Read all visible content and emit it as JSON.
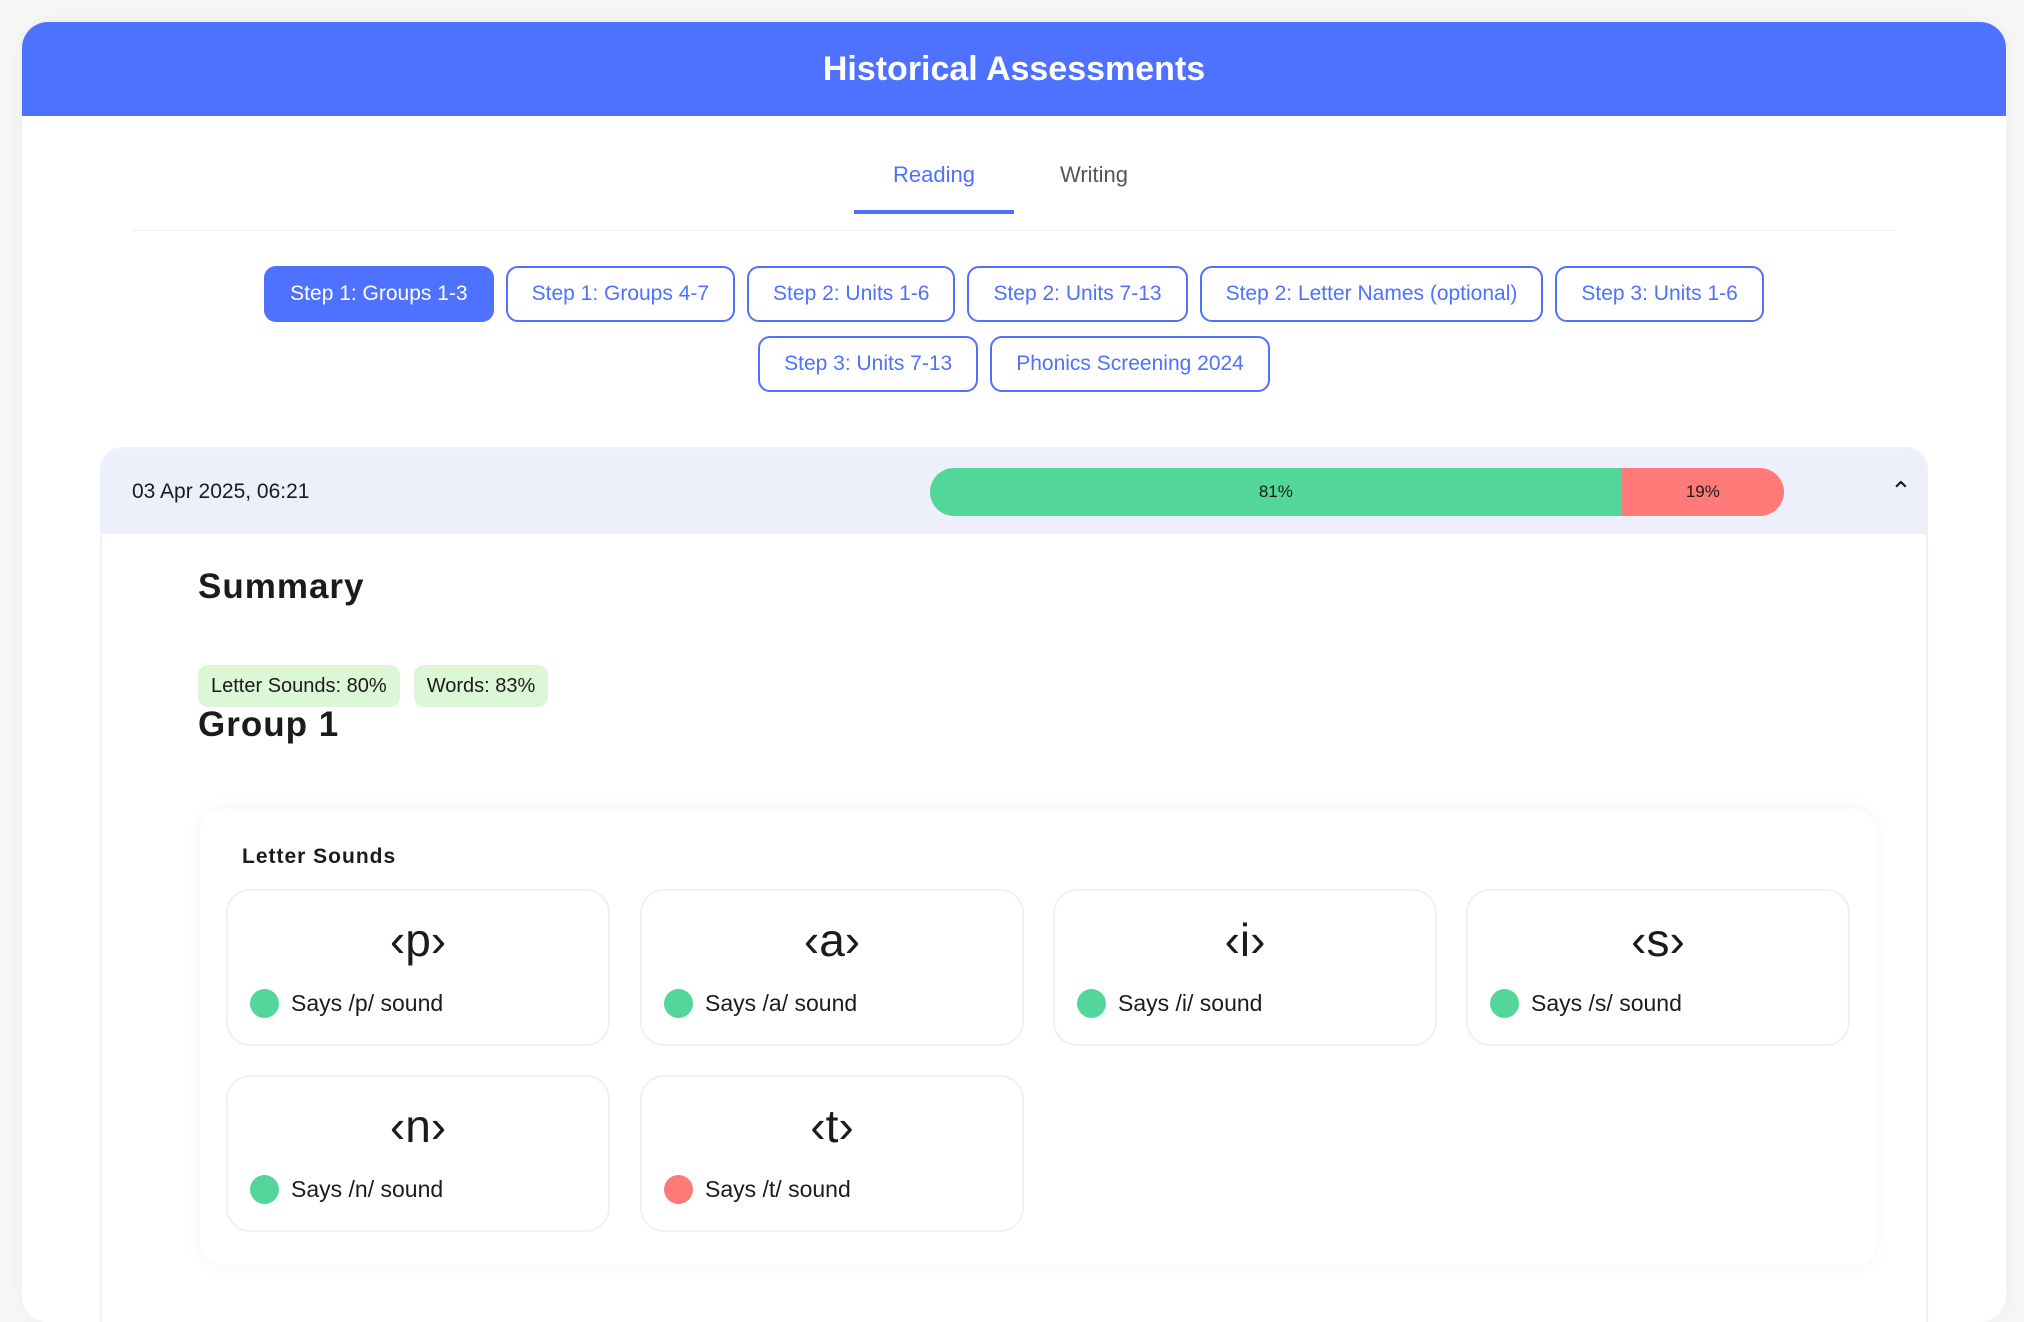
{
  "title": "Historical Assessments",
  "tabs": [
    {
      "label": "Reading",
      "active": true
    },
    {
      "label": "Writing",
      "active": false
    }
  ],
  "steps": [
    "Step 1: Groups 1-3",
    "Step 1: Groups 4-7",
    "Step 2: Units 1-6",
    "Step 2: Units 7-13",
    "Step 2: Letter Names (optional)",
    "Step 3: Units 1-6",
    "Step 3: Units 7-13",
    "Phonics Screening 2024"
  ],
  "assessment": {
    "date": "03 Apr 2025, 06:21",
    "correct_percent": 81,
    "correct_label": "81%",
    "incorrect_percent": 19,
    "incorrect_label": "19%",
    "correct_color": "#52d69a",
    "incorrect_color": "#ff7a78"
  },
  "summary": {
    "heading": "Summary",
    "badges": [
      "Letter Sounds: 80%",
      "Words: 83%"
    ]
  },
  "group": {
    "heading": "Group 1",
    "section": "Letter Sounds",
    "items": [
      {
        "glyph": "‹p›",
        "label": "Says /p/ sound",
        "status": "correct"
      },
      {
        "glyph": "‹a›",
        "label": "Says /a/ sound",
        "status": "correct"
      },
      {
        "glyph": "‹i›",
        "label": "Says /i/ sound",
        "status": "correct"
      },
      {
        "glyph": "‹s›",
        "label": "Says /s/ sound",
        "status": "correct"
      },
      {
        "glyph": "‹n›",
        "label": "Says /n/ sound",
        "status": "correct"
      },
      {
        "glyph": "‹t›",
        "label": "Says /t/ sound",
        "status": "incorrect"
      }
    ]
  }
}
